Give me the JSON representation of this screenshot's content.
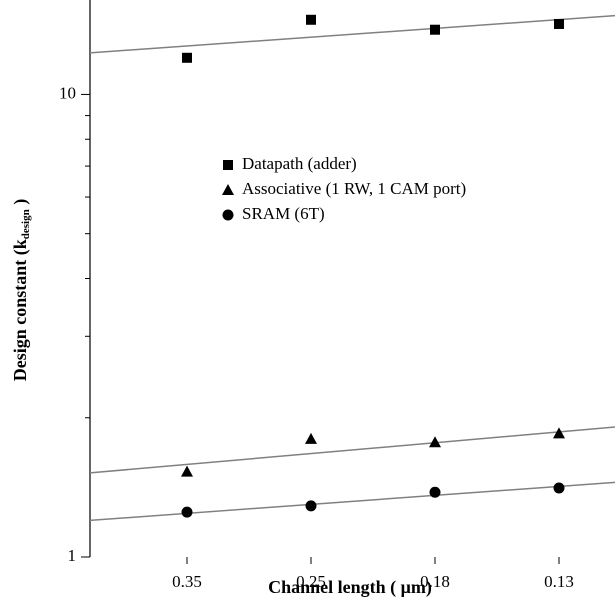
{
  "chart_data": {
    "type": "scatter",
    "y_log": true,
    "x_label": "Channel length ( μm)",
    "y_label": "Design constant (k",
    "y_label_sub": "design",
    "y_label_end": " )",
    "categories": [
      "0.35",
      "0.25",
      "0.18",
      "0.13"
    ],
    "ylim": [
      1,
      16
    ],
    "yticks": [
      1,
      10
    ],
    "minor_yticks": [
      2,
      3,
      4,
      5,
      6,
      7,
      8,
      9
    ],
    "series": [
      {
        "name": "Datapath (adder)",
        "marker": "square",
        "color": "#000000",
        "values": [
          12,
          14.5,
          13.8,
          14.2
        ],
        "fit_ends": [
          12.3,
          14.8
        ]
      },
      {
        "name": "Associative (1 RW, 1 CAM port)",
        "marker": "triangle",
        "color": "#000000",
        "values": [
          1.53,
          1.8,
          1.77,
          1.85
        ],
        "fit_ends": [
          1.52,
          1.91
        ]
      },
      {
        "name": "SRAM (6T)",
        "marker": "circle",
        "color": "#000000",
        "values": [
          1.25,
          1.29,
          1.38,
          1.41
        ],
        "fit_ends": [
          1.2,
          1.45
        ]
      }
    ],
    "fit_color": "#808080"
  }
}
